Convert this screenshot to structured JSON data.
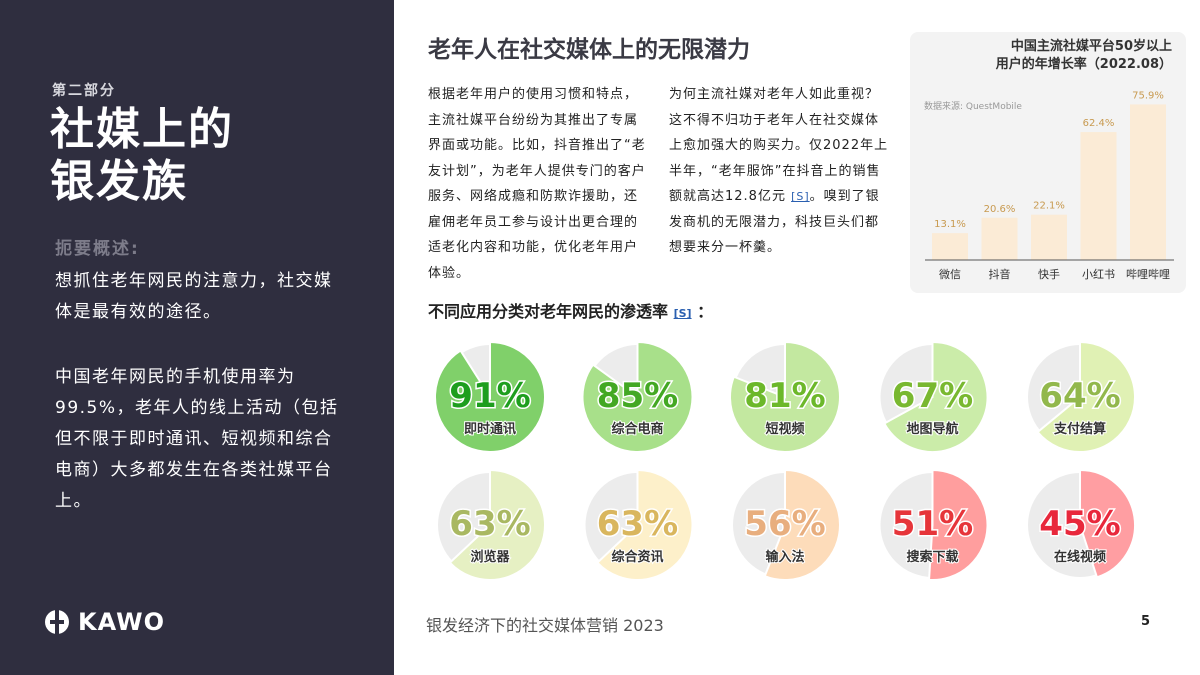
{
  "sidebar": {
    "section": "第二部分",
    "title_line1": "社媒上的",
    "title_line2": "银发族",
    "summary_heading": "扼要概述:",
    "summary_p1": "想抓住老年网民的注意力，社交媒体是最有效的途径。",
    "summary_p2": "中国老年网民的手机使用率为99.5%，老年人的线上活动（包括但不限于即时通讯、短视频和综合电商）大多都发生在各类社媒平台上。",
    "logo": "KAWO"
  },
  "main": {
    "title": "老年人在社交媒体上的无限潜力",
    "para1": "根据老年用户的使用习惯和特点，主流社媒平台纷纷为其推出了专属界面或功能。比如，抖音推出了“老友计划”，为老年人提供专门的客户服务、网络成瘾和防欺诈援助，还雇佣老年员工参与设计出更合理的适老化内容和功能，优化老年用户体验。",
    "para2_a": "为何主流社媒对老年人如此重视？这不得不归功于老年人在社交媒体上愈加强大的购买力。仅2022年上半年，“老年服饰”在抖音上的销售额就高达12.8亿元 ",
    "para2_ref": "[S]",
    "para2_b": "。嗅到了银发商机的无限潜力，科技巨头们都想要来分一杯羹。",
    "pie_heading": "不同应用分类对老年网民的渗透率 ",
    "pie_ref": "[S]",
    "pie_colon": "："
  },
  "chart_data": [
    {
      "type": "bar",
      "title": "中国主流社媒平台50岁以上用户的年增长率（2022.08）",
      "source": "数据来源: QuestMobile",
      "categories": [
        "微信",
        "抖音",
        "快手",
        "小红书",
        "哔哩哔哩"
      ],
      "values": [
        13.1,
        20.6,
        22.1,
        62.4,
        75.9
      ],
      "labels": [
        "13.1%",
        "20.6%",
        "22.1%",
        "62.4%",
        "75.9%"
      ],
      "bar_color": "#fbebd6",
      "label_color": "#c89a50"
    },
    {
      "type": "pie",
      "title": "不同应用分类对老年网民的渗透率",
      "items": [
        {
          "name": "即时通讯",
          "value": 91,
          "label": "91%",
          "fill": "#80d06a",
          "text": "#1e9e1e"
        },
        {
          "name": "综合电商",
          "value": 85,
          "label": "85%",
          "fill": "#a8e08a",
          "text": "#43a823"
        },
        {
          "name": "短视频",
          "value": 81,
          "label": "81%",
          "fill": "#c3e8a0",
          "text": "#6cb82a"
        },
        {
          "name": "地图导航",
          "value": 67,
          "label": "67%",
          "fill": "#cbeca9",
          "text": "#79b830"
        },
        {
          "name": "支付结算",
          "value": 64,
          "label": "64%",
          "fill": "#e0f1b4",
          "text": "#92b84c"
        },
        {
          "name": "浏览器",
          "value": 63,
          "label": "63%",
          "fill": "#e6f0c3",
          "text": "#a9b862"
        },
        {
          "name": "综合资讯",
          "value": 63,
          "label": "63%",
          "fill": "#fdf0ca",
          "text": "#d9b65e"
        },
        {
          "name": "输入法",
          "value": 56,
          "label": "56%",
          "fill": "#fddcba",
          "text": "#e8ae7e"
        },
        {
          "name": "搜索下载",
          "value": 51,
          "label": "51%",
          "fill": "#ff9e9e",
          "text": "#e6353a"
        },
        {
          "name": "在线视频",
          "value": 45,
          "label": "45%",
          "fill": "#ff9ea2",
          "text": "#e8283c"
        }
      ]
    }
  ],
  "footer": {
    "text": "银发经济下的社交媒体营销 2023",
    "page": "5"
  }
}
